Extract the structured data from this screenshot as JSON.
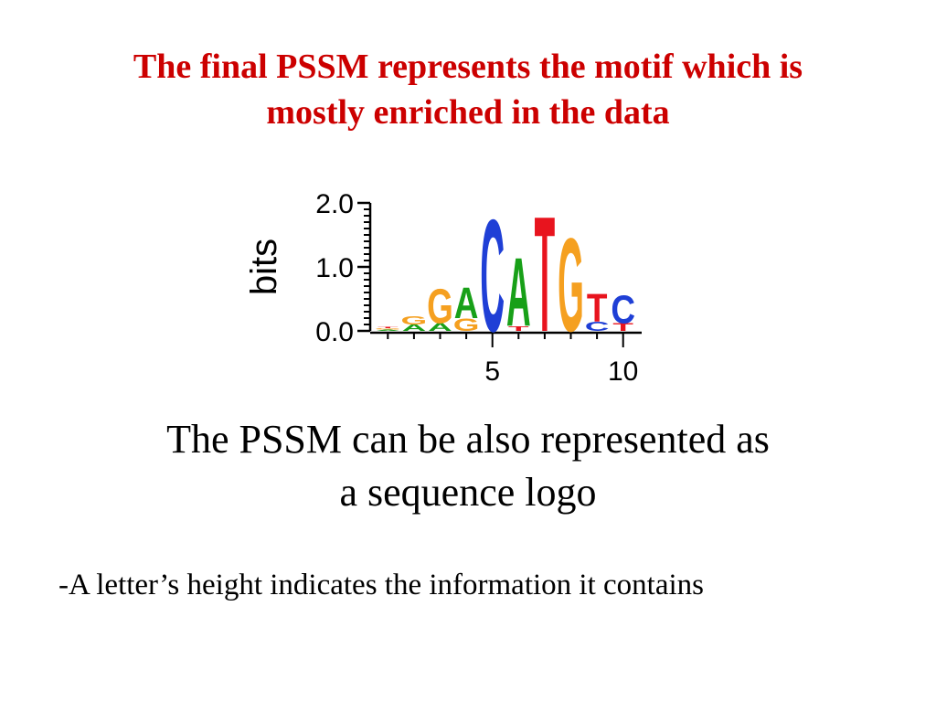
{
  "slide": {
    "title_lines": [
      "The final PSSM represents the motif which is",
      "mostly enriched in the data"
    ],
    "subtitle_lines": [
      "The PSSM can be also represented as",
      "a sequence logo"
    ],
    "bullet": "-A letter’s height indicates the information it contains"
  },
  "colors": {
    "title": "#cc0000",
    "A": "#18a018",
    "C": "#1f3fd6",
    "G": "#f5a020",
    "T": "#e8141e"
  },
  "chart_data": {
    "type": "sequence-logo",
    "ylabel": "bits",
    "ylim": [
      0,
      2
    ],
    "y_ticks": [
      "0.0",
      "1.0",
      "2.0"
    ],
    "x_ticks": [
      "5",
      "10"
    ],
    "positions": [
      {
        "pos": 1,
        "stack": [
          {
            "letter": "A",
            "bits": 0.02
          },
          {
            "letter": "G",
            "bits": 0.02
          },
          {
            "letter": "T",
            "bits": 0.02
          }
        ]
      },
      {
        "pos": 2,
        "stack": [
          {
            "letter": "A",
            "bits": 0.1
          },
          {
            "letter": "G",
            "bits": 0.13
          }
        ]
      },
      {
        "pos": 3,
        "stack": [
          {
            "letter": "A",
            "bits": 0.12
          },
          {
            "letter": "G",
            "bits": 0.55
          }
        ]
      },
      {
        "pos": 4,
        "stack": [
          {
            "letter": "G",
            "bits": 0.2
          },
          {
            "letter": "A",
            "bits": 0.5
          }
        ]
      },
      {
        "pos": 5,
        "stack": [
          {
            "letter": "C",
            "bits": 1.8
          }
        ]
      },
      {
        "pos": 6,
        "stack": [
          {
            "letter": "T",
            "bits": 0.08
          },
          {
            "letter": "A",
            "bits": 1.1
          }
        ]
      },
      {
        "pos": 7,
        "stack": [
          {
            "letter": "T",
            "bits": 1.85
          }
        ]
      },
      {
        "pos": 8,
        "stack": [
          {
            "letter": "G",
            "bits": 1.5
          }
        ]
      },
      {
        "pos": 9,
        "stack": [
          {
            "letter": "C",
            "bits": 0.15
          },
          {
            "letter": "T",
            "bits": 0.45
          }
        ]
      },
      {
        "pos": 10,
        "stack": [
          {
            "letter": "T",
            "bits": 0.12
          },
          {
            "letter": "C",
            "bits": 0.45
          }
        ]
      }
    ]
  }
}
